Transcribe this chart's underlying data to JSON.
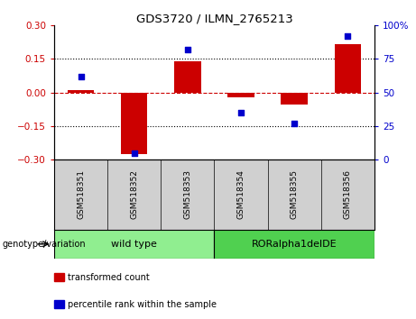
{
  "title": "GDS3720 / ILMN_2765213",
  "samples": [
    "GSM518351",
    "GSM518352",
    "GSM518353",
    "GSM518354",
    "GSM518355",
    "GSM518356"
  ],
  "transformed_count": [
    0.01,
    -0.275,
    0.14,
    -0.02,
    -0.055,
    0.215
  ],
  "percentile_rank": [
    62,
    5,
    82,
    35,
    27,
    92
  ],
  "ylim_left": [
    -0.3,
    0.3
  ],
  "ylim_right": [
    0,
    100
  ],
  "yticks_left": [
    -0.3,
    -0.15,
    0,
    0.15,
    0.3
  ],
  "yticks_right": [
    0,
    25,
    50,
    75,
    100
  ],
  "ytick_labels_right": [
    "0",
    "25",
    "50",
    "75",
    "100%"
  ],
  "bar_color": "#cc0000",
  "scatter_color": "#0000cc",
  "bar_width": 0.5,
  "groups": [
    {
      "label": "wild type",
      "indices": [
        0,
        1,
        2
      ],
      "color": "#90ee90"
    },
    {
      "label": "RORalpha1delDE",
      "indices": [
        3,
        4,
        5
      ],
      "color": "#50d050"
    }
  ],
  "genotype_label": "genotype/variation",
  "legend_items": [
    {
      "label": "transformed count",
      "color": "#cc0000"
    },
    {
      "label": "percentile rank within the sample",
      "color": "#0000cc"
    }
  ],
  "tick_color_left": "#cc0000",
  "tick_color_right": "#0000cc",
  "zero_line_color": "#cc0000",
  "dotted_line_color": "black",
  "background_plot": "white",
  "background_label": "#d0d0d0"
}
